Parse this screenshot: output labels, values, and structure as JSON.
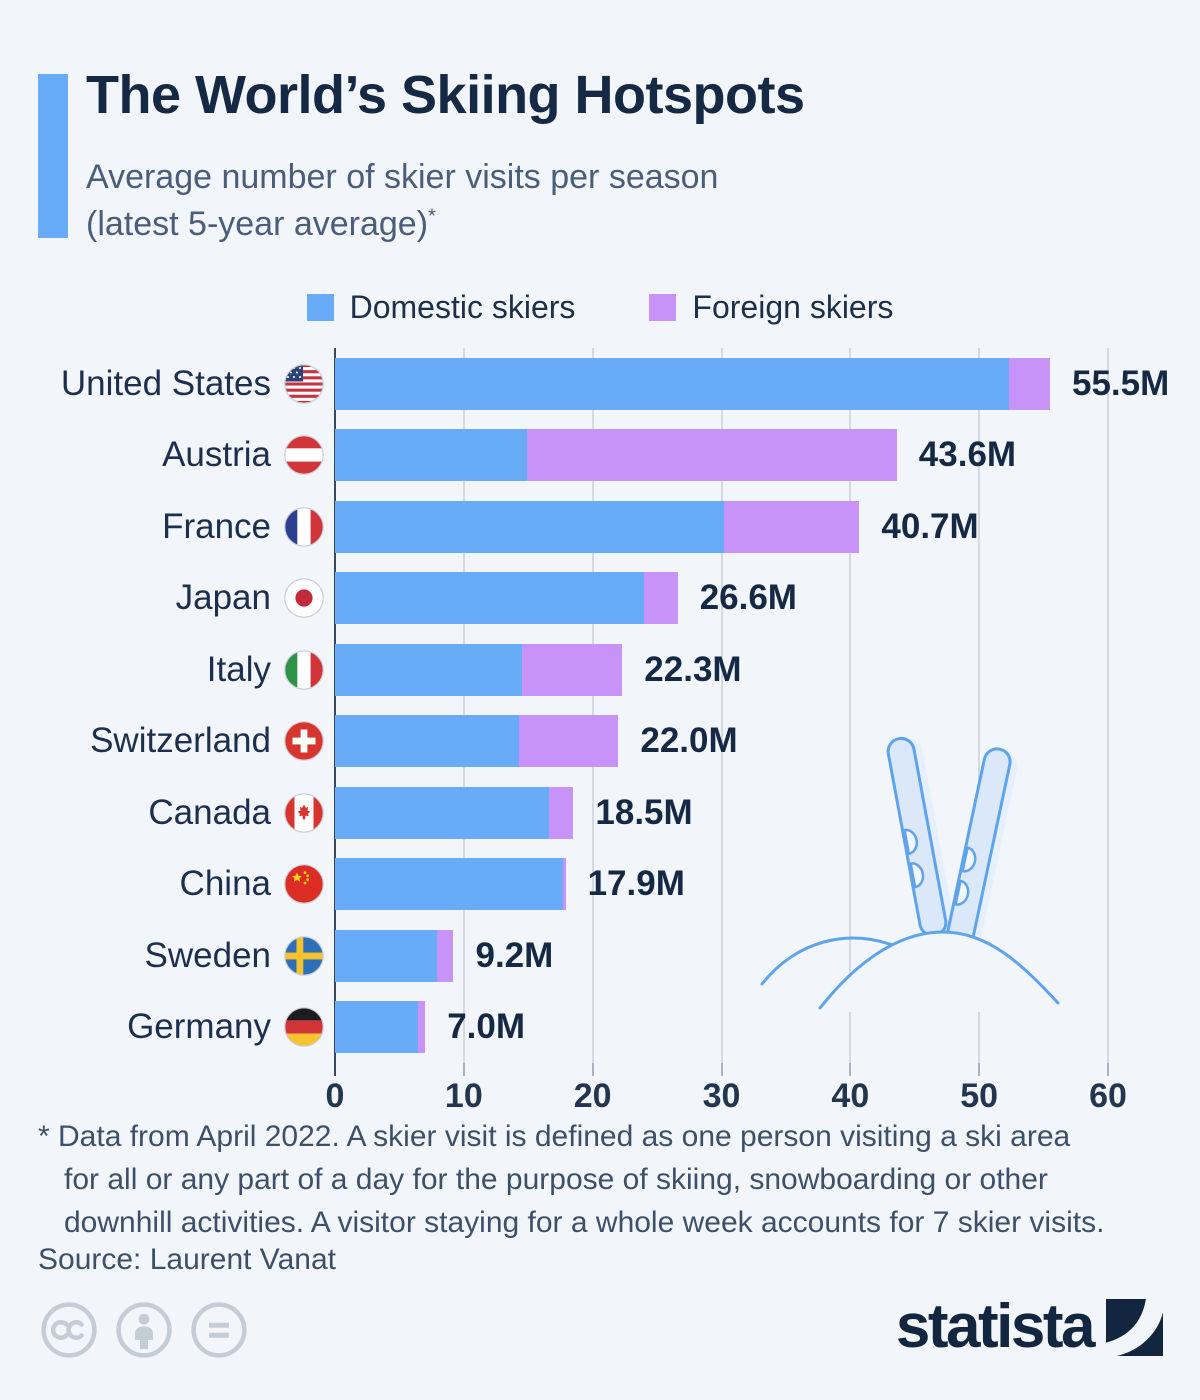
{
  "header": {
    "title": "The World’s Skiing Hotspots",
    "subtitle_line1": "Average number of skier visits per season",
    "subtitle_line2": "(latest 5-year average)",
    "footnote_marker": "*"
  },
  "legend": {
    "items": [
      {
        "label": "Domestic skiers",
        "color": "#68abf7"
      },
      {
        "label": "Foreign skiers",
        "color": "#c893f8"
      }
    ]
  },
  "chart_data": {
    "type": "bar",
    "orientation": "horizontal",
    "stacked": true,
    "unit": "million skier visits",
    "xlim": [
      0,
      60
    ],
    "x_ticks": [
      "0",
      "10",
      "20",
      "30",
      "40",
      "50",
      "60"
    ],
    "grid": true,
    "categories": [
      "United States",
      "Austria",
      "France",
      "Japan",
      "Italy",
      "Switzerland",
      "Canada",
      "China",
      "Sweden",
      "Germany"
    ],
    "flags": [
      "us",
      "at",
      "fr",
      "jp",
      "it",
      "ch",
      "ca",
      "cn",
      "se",
      "de"
    ],
    "flag_names": [
      "united-states-flag-icon",
      "austria-flag-icon",
      "france-flag-icon",
      "japan-flag-icon",
      "italy-flag-icon",
      "switzerland-flag-icon",
      "canada-flag-icon",
      "china-flag-icon",
      "sweden-flag-icon",
      "germany-flag-icon"
    ],
    "series": [
      {
        "name": "Domestic skiers",
        "color": "#68abf7",
        "values": [
          52.3,
          14.9,
          30.2,
          24.0,
          14.5,
          14.3,
          16.6,
          17.7,
          7.9,
          6.4
        ]
      },
      {
        "name": "Foreign skiers",
        "color": "#c893f8",
        "values": [
          3.2,
          28.7,
          10.5,
          2.6,
          7.8,
          7.7,
          1.9,
          0.2,
          1.3,
          0.6
        ]
      }
    ],
    "totals": [
      55.5,
      43.6,
      40.7,
      26.6,
      22.3,
      22.0,
      18.5,
      17.9,
      9.2,
      7.0
    ],
    "total_labels": [
      "55.5M",
      "43.6M",
      "40.7M",
      "26.6M",
      "22.3M",
      "22.0M",
      "18.5M",
      "17.9M",
      "9.2M",
      "7.0M"
    ]
  },
  "footnote": {
    "lines": [
      "* Data from April 2022. A skier visit is defined as one person visiting a ski area",
      "for all or any part of a day for the purpose of skiing, snowboarding or other",
      "downhill activities. A visitor staying for a whole week accounts for 7 skier visits."
    ]
  },
  "source": "Source: Laurent Vanat",
  "footer": {
    "logo_text": "statista",
    "license_icons": [
      "cc-icon",
      "attribution-icon",
      "equals-icon"
    ],
    "brand_color": "#12273f"
  }
}
